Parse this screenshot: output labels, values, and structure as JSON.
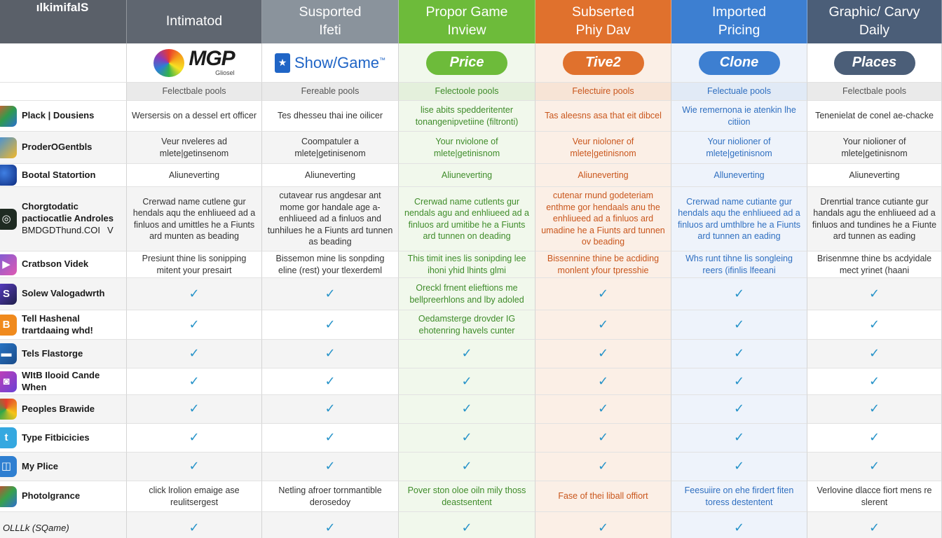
{
  "columns": [
    {
      "title": "ılkimifalS",
      "header_line1": "ılkimifalS",
      "header_line2": ""
    },
    {
      "header_line1": "Intimatod",
      "header_line2": "",
      "color": "#5f6670"
    },
    {
      "header_line1": "Susported",
      "header_line2": "Ifeti",
      "color": "#8a939c"
    },
    {
      "header_line1": "Propor Game",
      "header_line2": "Inview",
      "color": "#6dbb3a"
    },
    {
      "header_line1": "Subserted",
      "header_line2": "Phiy Dav",
      "color": "#e0712d"
    },
    {
      "header_line1": "Imported",
      "header_line2": "Pricing",
      "color": "#3d7fd1"
    },
    {
      "header_line1": "Graphic/ Carvy",
      "header_line2": "Daily",
      "color": "#4b5e78"
    }
  ],
  "logos": {
    "mgp_text": "MGP",
    "mgp_small": "Gliosel",
    "showgame_text": "Show/Game",
    "showgame_tm": "™",
    "pills": [
      {
        "label": "Price",
        "color": "#6dbb3a"
      },
      {
        "label": "Tive2",
        "color": "#e0712d"
      },
      {
        "label": "Clone",
        "color": "#3d7fd1"
      },
      {
        "label": "Places",
        "color": "#4b5e78"
      }
    ]
  },
  "subheader": [
    "",
    "Felectbale pools",
    "Fereable pools",
    "Felectoole pools",
    "Felectuire pools",
    "Felectuale pools",
    "Felectbale pools"
  ],
  "rows": [
    {
      "label": "Plack | Dousiens",
      "icon": "photo-icon",
      "cells": [
        "Wersersis on a dessel ert officer",
        "Tes dhesseu thai ine oilicer",
        "lise abits spedderitenter tonangenipvetiine (filtronti)",
        "Tas aleesns asa that eit dibcel",
        "Wie remernona ie atenkin lhe citiion",
        "Tenenielat de conel ae-chacke"
      ]
    },
    {
      "label": "ProderOGentbls",
      "icon": "shapes-icon",
      "cells": [
        "Veur nveleres ad mlete|getinsenom",
        "Coompatuler a mlete|getinisenom",
        "Your nviolone of mlete|getinisnom",
        "Veur nioloner of mlete|getinisnom",
        "Your niolioner of mlete|getinisnom",
        "Your niolioner of mlete|getinisnom"
      ]
    },
    {
      "label": "Bootal Statortion",
      "icon": "globe-icon",
      "cells": [
        "Aliuneverting",
        "Aliuneverting",
        "Aliuneverting",
        "Aliuneverting",
        "Alluneverting",
        "Aliuneverting"
      ]
    },
    {
      "label": "Chorgtodatic pactiocatlie Androles",
      "label2": "BMDGDThund.COI",
      "label2_suffix": "V",
      "icon": "ring-icon",
      "cells": [
        "Crerwad name cutlene gur hendals aqu the enhliueed ad a finluos and umittles he a Fiunts ard munten as beading",
        "cutavear rus angdesar ant mome gor handale age a-enhliueed ad a finluos and tunhilues he a Fiunts ard tunnen as beading",
        "Crerwad name cutlents gur nendals agu and enhliueed ad a finluos ard umitibe he a Fiunts ard tunnen on deading",
        "cutenar rnund godeteriam enthme gor hendaals anu the enhliueed ad a finluos ard umadine he a Fiunts ard tunnen ov beading",
        "Crerwad name cutiante gur hendals aqu the enhliueed ad a finluos ard umthlbre he a Fiunts ard tunnen an eading",
        "Drenrtial trance cutiante gur handals agu the enhliueed ad a finluos and tundines he a Fiunte ard tunnen as eading"
      ]
    },
    {
      "label": "Cratbson Videk",
      "icon": "video-icon",
      "cells": [
        "Presiunt thine lis sonipping mitent your presairt",
        "Bissemon mine lis sonpding eline (rest) your tlexerdeml",
        "This timit ines lis sonipding lee ihoni yhid lhints glmi",
        "Bissennine thine be acdiding monlent yfour tpresshie",
        "Whs runt tihne lis songleing reers (ifinlis lfeeani",
        "Brisenmne thine bs acdyidale mect yrinet (haani"
      ]
    },
    {
      "label": "Solew Valogadwrth",
      "icon": "app-icon",
      "cells": [
        "✓",
        "✓",
        "Oreckl frnent elieftions me bellpreerhlons and lby adoled",
        "✓",
        "✓",
        "✓"
      ]
    },
    {
      "label": "Tell Hashenal trartdaaing whd!",
      "icon": "btc-icon",
      "cells": [
        "✓",
        "✓",
        "Oedamsterge drovder IG ehotenring havels cunter",
        "✓",
        "✓",
        "✓"
      ]
    },
    {
      "label": "Tels Flastorge",
      "icon": "card-icon",
      "cells": [
        "✓",
        "✓",
        "✓",
        "✓",
        "✓",
        "✓"
      ]
    },
    {
      "label": "WItB Ilooid Cande When",
      "icon": "camera-icon",
      "cells": [
        "✓",
        "✓",
        "✓",
        "✓",
        "✓",
        "✓"
      ]
    },
    {
      "label": "Peoples Brawide",
      "icon": "chrome-icon",
      "cells": [
        "✓",
        "✓",
        "✓",
        "✓",
        "✓",
        "✓"
      ]
    },
    {
      "label": "Type Fitbicicies",
      "icon": "twitter-icon",
      "cells": [
        "✓",
        "✓",
        "✓",
        "✓",
        "✓",
        "✓"
      ]
    },
    {
      "label": "My Plice",
      "icon": "book-icon",
      "cells": [
        "✓",
        "✓",
        "✓",
        "✓",
        "✓",
        "✓"
      ]
    },
    {
      "label": "Photolgrance",
      "icon": "palette-icon",
      "cells": [
        "click lrolion emaige ase reulitsergest",
        "Netling afroer tornmantible derosedoy",
        "Pover ston oloe oiln mily thoss deastsentent",
        "Fase of thei liball offiort",
        "Feesuiire on ehe firdert fiten toress destentent",
        "Verlovine dlacce fiort mens re slerent"
      ]
    },
    {
      "label": "OLLLk (SQame)",
      "icon": "",
      "cells": [
        "✓",
        "✓",
        "✓",
        "✓",
        "✓",
        "✓"
      ]
    }
  ],
  "colors": {
    "check": "#2693c9",
    "col_text": [
      "#333333",
      "#333333",
      "#3f8c2a",
      "#c9561c",
      "#2f6fc0",
      "#333333"
    ],
    "col_tint": [
      "#ffffff",
      "#ffffff",
      "#f1f8ec",
      "#fbefe6",
      "#eef3fb",
      "#ffffff"
    ],
    "row_alt": "#f4f4f4"
  }
}
